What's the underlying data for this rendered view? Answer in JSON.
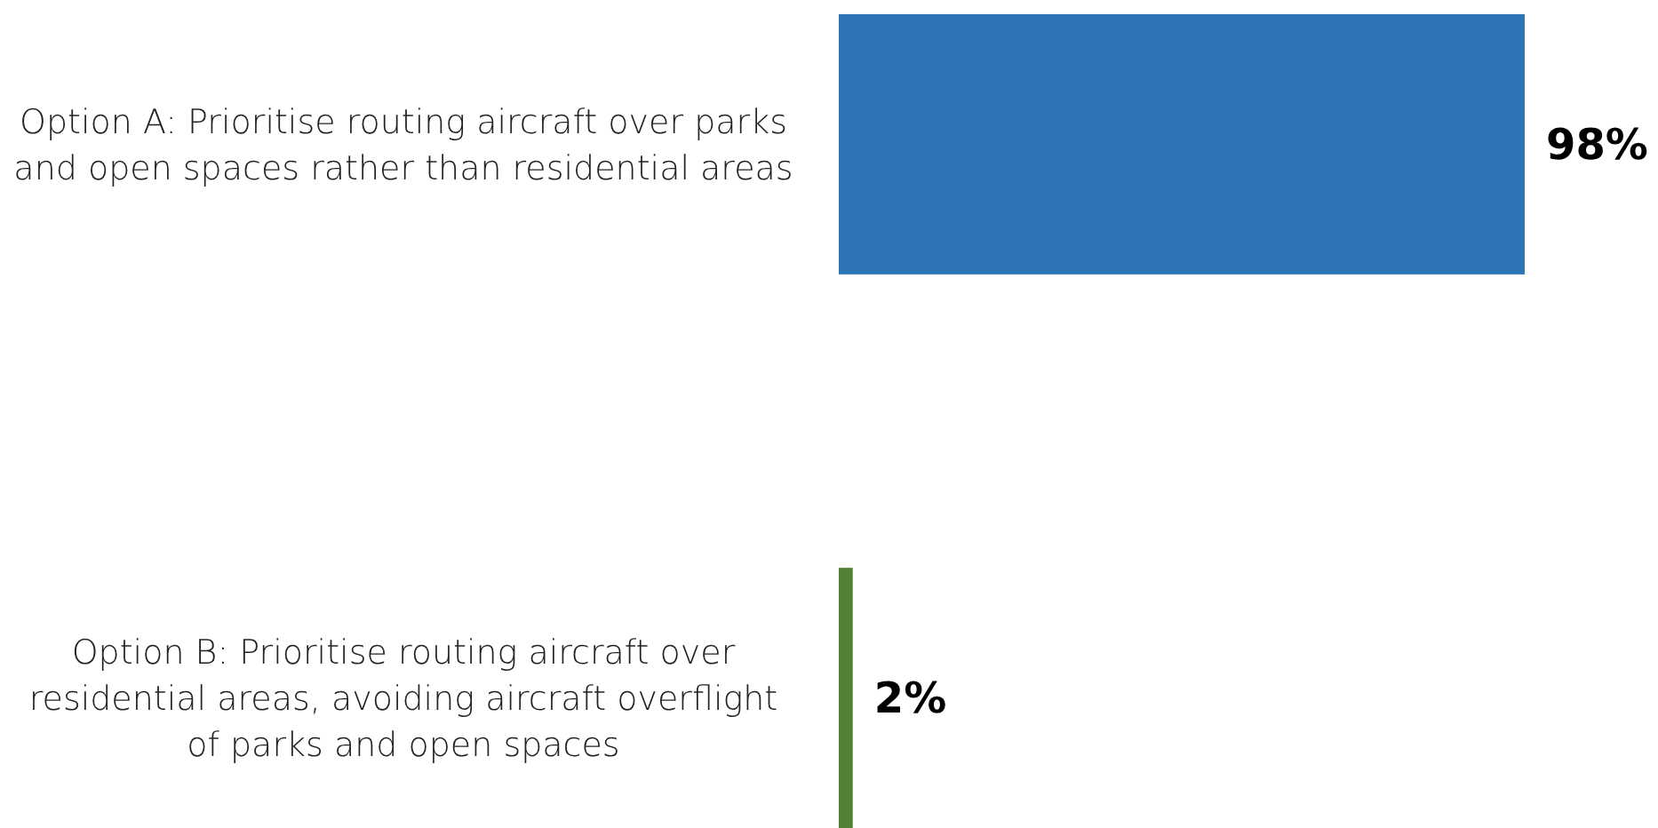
{
  "chart_data": {
    "type": "bar",
    "orientation": "horizontal",
    "categories": [
      "Option A: Prioritise routing aircraft over parks and open spaces rather than residential areas",
      "Option B: Prioritise routing aircraft over residential areas, avoiding aircraft overflight of parks and open spaces"
    ],
    "values": [
      98,
      2
    ],
    "colors": [
      "#2e75b6",
      "#548235"
    ],
    "data_labels": true,
    "value_labels": [
      "98%",
      "2%"
    ]
  }
}
